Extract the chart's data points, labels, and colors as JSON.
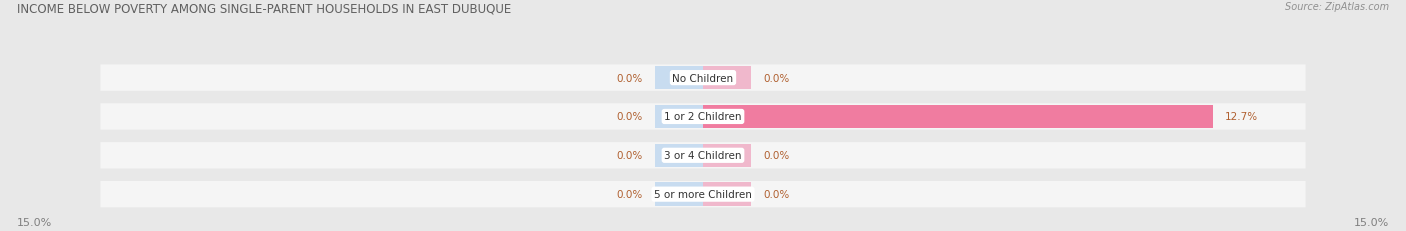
{
  "title": "INCOME BELOW POVERTY AMONG SINGLE-PARENT HOUSEHOLDS IN EAST DUBUQUE",
  "source": "Source: ZipAtlas.com",
  "categories": [
    "No Children",
    "1 or 2 Children",
    "3 or 4 Children",
    "5 or more Children"
  ],
  "single_father": [
    0.0,
    0.0,
    0.0,
    0.0
  ],
  "single_mother": [
    0.0,
    12.7,
    0.0,
    0.0
  ],
  "x_max": 15.0,
  "x_min": -15.0,
  "father_color": "#aac4e0",
  "mother_color": "#f07ca0",
  "mother_color_light": "#f0b8cc",
  "father_color_light": "#c8dcf0",
  "bg_color": "#e8e8e8",
  "row_bg_color": "#f5f5f5",
  "title_color": "#606060",
  "label_color": "#808080",
  "value_color": "#b06030",
  "source_color": "#909090",
  "legend_color": "#606060",
  "figsize": [
    14.06,
    2.32
  ],
  "dpi": 100
}
